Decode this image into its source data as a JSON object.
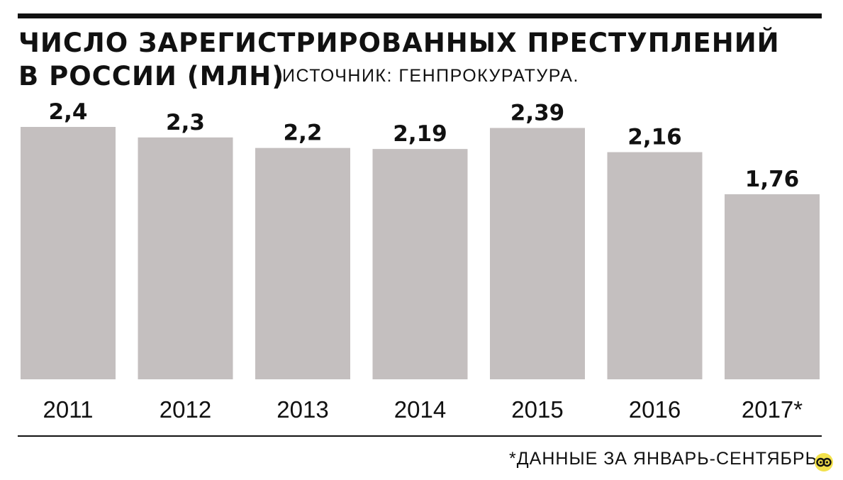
{
  "chart_data": {
    "type": "bar",
    "title": "ЧИСЛО ЗАРЕГИСТРИРОВАННЫХ ПРЕСТУПЛЕНИЙ В РОССИИ (МЛН)",
    "title_lines": [
      "ЧИСЛО ЗАРЕГИСТРИРОВАННЫХ ПРЕСТУПЛЕНИЙ",
      "В РОССИИ (МЛН)"
    ],
    "source": "ИСТОЧНИК: ГЕНПРОКУРАТУРА.",
    "categories": [
      "2011",
      "2012",
      "2013",
      "2014",
      "2015",
      "2016",
      "2017*"
    ],
    "values": [
      2.4,
      2.3,
      2.2,
      2.19,
      2.39,
      2.16,
      1.76
    ],
    "value_labels": [
      "2,4",
      "2,3",
      "2,2",
      "2,19",
      "2,39",
      "2,16",
      "1,76"
    ],
    "footnote": "*ДАННЫЕ ЗА ЯНВАРЬ-СЕНТЯБРЬ",
    "ylim": [
      0,
      2.4
    ],
    "grid": false,
    "legend": "none",
    "bar_color": "#c4bfbf",
    "text_color": "#111111"
  },
  "brand": {
    "logo_icon": "circle-logo-icon",
    "logo_color": "#f2e14c"
  }
}
